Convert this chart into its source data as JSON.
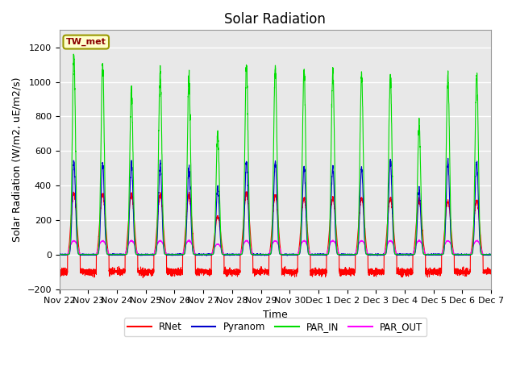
{
  "title": "Solar Radiation",
  "ylabel": "Solar Radiation (W/m2, uE/m2/s)",
  "xlabel": "Time",
  "station_label": "TW_met",
  "ylim": [
    -200,
    1300
  ],
  "yticks": [
    -200,
    0,
    200,
    400,
    600,
    800,
    1000,
    1200
  ],
  "n_days": 15,
  "xtick_labels": [
    "Nov 22",
    "Nov 23",
    "Nov 24",
    "Nov 25",
    "Nov 26",
    "Nov 27",
    "Nov 28",
    "Nov 29",
    "Nov 30",
    "Dec 1",
    "Dec 2",
    "Dec 3",
    "Dec 4",
    "Dec 5",
    "Dec 6",
    "Dec 7"
  ],
  "colors": {
    "RNet": "#ff0000",
    "Pyranom": "#0000cc",
    "PAR_IN": "#00dd00",
    "PAR_OUT": "#ff00ff"
  },
  "background_color": "#ffffff",
  "plot_bg_color": "#e8e8e8",
  "grid_color": "#ffffff",
  "par_in_peaks": [
    1150,
    1100,
    940,
    1050,
    1010,
    700,
    1090,
    1090,
    1060,
    1050,
    1040,
    1030,
    740,
    1040,
    1040
  ],
  "pyranom_peaks": [
    540,
    530,
    525,
    525,
    490,
    390,
    535,
    540,
    505,
    500,
    500,
    545,
    370,
    545,
    535
  ],
  "rnet_peaks": [
    355,
    350,
    345,
    345,
    340,
    220,
    355,
    345,
    325,
    325,
    325,
    325,
    310,
    310,
    310
  ],
  "par_out_peaks": [
    80,
    80,
    80,
    80,
    80,
    60,
    80,
    80,
    80,
    80,
    80,
    80,
    80,
    80,
    80
  ],
  "rnet_night": -100,
  "title_fontsize": 12,
  "label_fontsize": 9,
  "tick_fontsize": 8
}
